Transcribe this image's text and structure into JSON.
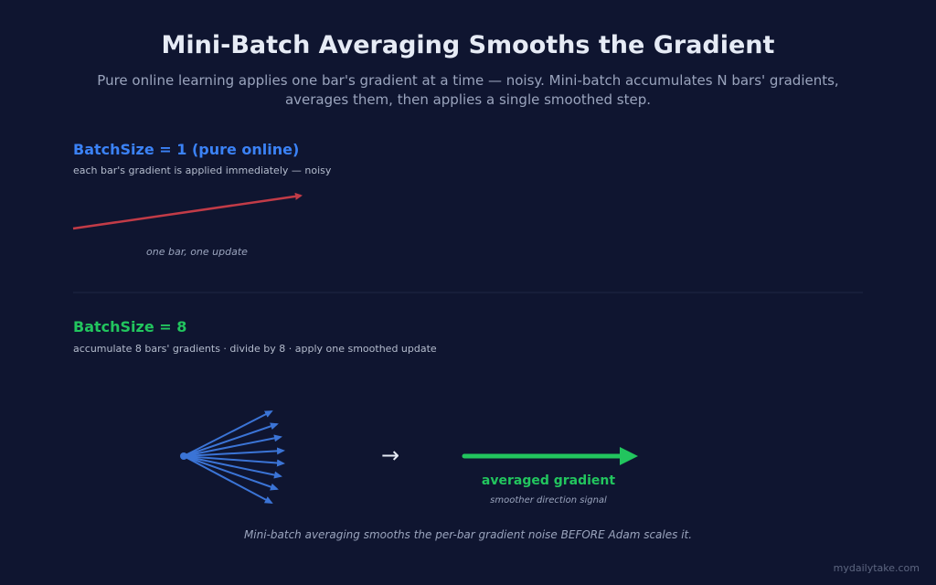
{
  "header": {
    "title": "Mini-Batch Averaging Smooths the Gradient",
    "subtitle": "Pure online learning applies one bar's gradient at a time — noisy. Mini-batch accumulates N bars' gradients, averages them, then applies a single smoothed step."
  },
  "online": {
    "heading": "BatchSize = 1 (pure online)",
    "description": "each bar's gradient is applied immediately — noisy",
    "caption": "one bar, one update"
  },
  "batch": {
    "heading": "BatchSize = 8",
    "description": "accumulate 8 bars' gradients · divide by 8 · apply one smoothed update",
    "arrow": "→",
    "result_label": "averaged gradient",
    "result_caption": "smoother direction signal"
  },
  "footer": {
    "note": "Mini-batch averaging smooths the per-bar gradient noise BEFORE Adam scales it.",
    "watermark": "mydailytake.com"
  }
}
